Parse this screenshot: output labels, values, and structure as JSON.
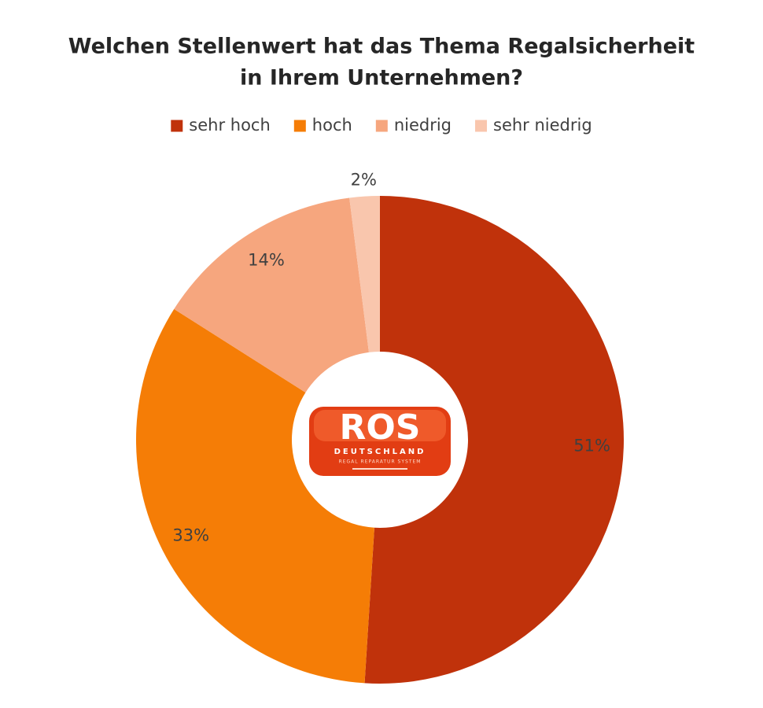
{
  "chart_data": {
    "type": "donut",
    "title": [
      "Welchen Stellenwert hat das Thema Regalsicherheit",
      "in Ihrem Unternehmen?"
    ],
    "categories": [
      "sehr hoch",
      "hoch",
      "niedrig",
      "sehr niedrig"
    ],
    "values": [
      51,
      33,
      14,
      2
    ],
    "value_labels": [
      "51%",
      "33%",
      "14%",
      "2%"
    ],
    "colors": [
      "#c0320b",
      "#f57d06",
      "#f6a67e",
      "#f9c6ad"
    ],
    "legend": "top"
  },
  "logo": {
    "title": "ROS",
    "subtitle": "DEUTSCHLAND",
    "tagline": "REGAL REPARATUR SYSTEM"
  }
}
